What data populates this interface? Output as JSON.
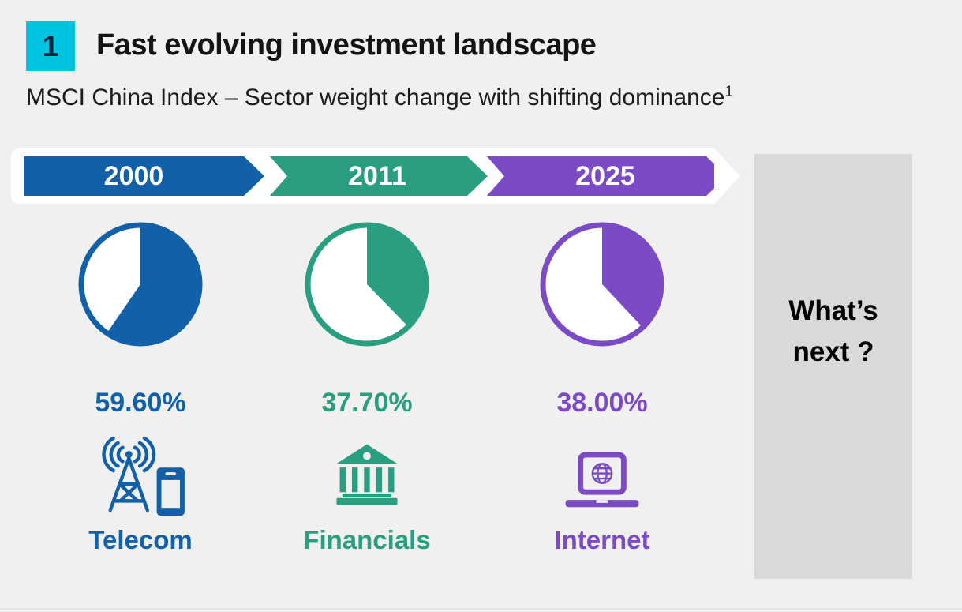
{
  "header": {
    "badge": "1",
    "title": "Fast evolving investment landscape",
    "subtitle": "MSCI China Index – Sector weight change with shifting dominance",
    "footnote_marker": "1"
  },
  "colors": {
    "cyan": "#00c3df",
    "blue": "#1160a8",
    "green": "#2a9e81",
    "purple": "#7b4ac5",
    "panel_gray": "#d9d9d9",
    "background": "#f0f0ee"
  },
  "chart_data": {
    "type": "pie",
    "title": "MSCI China Index – Sector weight change with shifting dominance",
    "layout": "three pies in a row, wedge filled clockwise from 12 o'clock, remainder shown as outlined ring",
    "series": [
      {
        "year": "2000",
        "sector": "Telecom",
        "value_pct": 59.6,
        "label": "59.60%",
        "color": "#1160a8",
        "icon": "telecom-tower-and-phone"
      },
      {
        "year": "2011",
        "sector": "Financials",
        "value_pct": 37.7,
        "label": "37.70%",
        "color": "#2a9e81",
        "icon": "bank-building"
      },
      {
        "year": "2025",
        "sector": "Internet",
        "value_pct": 38.0,
        "label": "38.00%",
        "color": "#7b4ac5",
        "icon": "laptop-globe"
      }
    ]
  },
  "panel": {
    "line1": "What’s",
    "line2": "next ?"
  }
}
